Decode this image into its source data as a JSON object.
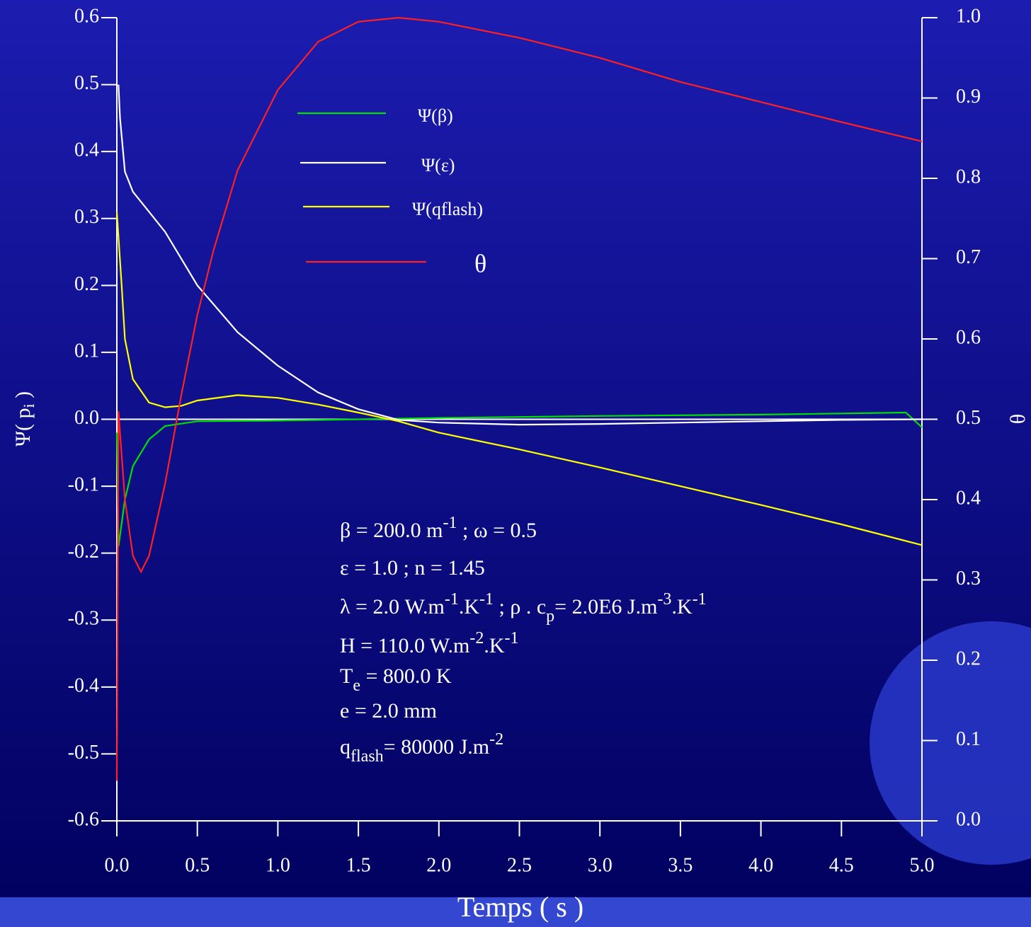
{
  "chart_data": {
    "type": "line",
    "xlabel": "Temps ( s )",
    "ylabel": [
      "Ψ( p",
      "i",
      " )"
    ],
    "y2label": "θ",
    "xlim": [
      0,
      5
    ],
    "xticks": [
      {
        "value": 0,
        "label": "0.0"
      },
      0.5,
      {
        "value": 1,
        "label": "1.0"
      },
      1.5,
      {
        "value": 2,
        "label": "2.0"
      },
      2.5,
      {
        "value": 3,
        "label": "3.0"
      },
      3.5,
      {
        "value": 4,
        "label": "4.0"
      },
      4.5,
      {
        "value": 5,
        "label": "5.0"
      }
    ],
    "ylim": [
      -0.6,
      0.6
    ],
    "yticks": [
      -0.6,
      -0.5,
      -0.4,
      -0.3,
      -0.2,
      -0.1,
      {
        "value": 0,
        "label": "0.0"
      },
      0.1,
      0.2,
      0.3,
      0.4,
      0.5,
      0.6
    ],
    "y2lim": [
      0,
      1
    ],
    "y2ticks": [
      {
        "value": 0,
        "label": "0.0"
      },
      0.1,
      0.2,
      0.3,
      0.4,
      0.5,
      0.6,
      0.7,
      0.8,
      0.9,
      {
        "value": 1,
        "label": "1.0"
      }
    ],
    "series": [
      {
        "name": "Ψ(β)",
        "color": "#00e000",
        "x": [
          0,
          0.01,
          0.05,
          0.1,
          0.2,
          0.3,
          0.5,
          1.0,
          1.5,
          2.0,
          3.0,
          4.0,
          4.9,
          5.0
        ],
        "values": [
          -0.02,
          -0.19,
          -0.12,
          -0.07,
          -0.03,
          -0.01,
          -0.003,
          -0.002,
          0.0,
          0.002,
          0.005,
          0.007,
          0.01,
          -0.012
        ]
      },
      {
        "name": "Ψ(ε)",
        "color": "#ffffff",
        "x": [
          0.01,
          0.02,
          0.05,
          0.1,
          0.2,
          0.3,
          0.5,
          0.75,
          1.0,
          1.25,
          1.5,
          1.75,
          2.0,
          2.5,
          3.0,
          3.5,
          4.0,
          4.5,
          5.0
        ],
        "values": [
          0.5,
          0.45,
          0.37,
          0.34,
          0.31,
          0.28,
          0.2,
          0.13,
          0.08,
          0.04,
          0.015,
          -0.001,
          -0.005,
          -0.008,
          -0.007,
          -0.005,
          -0.003,
          -0.001,
          0.0
        ]
      },
      {
        "name": "Ψ(qflash)",
        "color": "#ffff00",
        "x": [
          0,
          0.03,
          0.05,
          0.1,
          0.2,
          0.3,
          0.4,
          0.5,
          0.75,
          1.0,
          1.25,
          1.5,
          1.75,
          2.0,
          2.5,
          3.0,
          3.5,
          4.0,
          4.5,
          5.0
        ],
        "values": [
          0.31,
          0.2,
          0.12,
          0.06,
          0.025,
          0.018,
          0.02,
          0.028,
          0.036,
          0.032,
          0.022,
          0.01,
          -0.003,
          -0.02,
          -0.045,
          -0.072,
          -0.1,
          -0.128,
          -0.157,
          -0.188
        ]
      },
      {
        "name": "θ",
        "color": "#ff2020",
        "axis": "y2",
        "x": [
          0,
          0.01,
          0.05,
          0.1,
          0.15,
          0.2,
          0.3,
          0.4,
          0.5,
          0.6,
          0.75,
          1.0,
          1.25,
          1.5,
          1.75,
          2.0,
          2.5,
          3.0,
          3.5,
          4.0,
          4.5,
          5.0
        ],
        "values": [
          0.05,
          0.51,
          0.4,
          0.33,
          0.31,
          0.33,
          0.42,
          0.53,
          0.63,
          0.71,
          0.81,
          0.91,
          0.97,
          0.995,
          1.0,
          0.995,
          0.975,
          0.95,
          0.92,
          0.895,
          0.87,
          0.846
        ]
      }
    ],
    "annotations": [
      [
        "β  = 200.0 m",
        "-1",
        " ; ω  = 0.5"
      ],
      [
        "ε  = 1.0  ;  n = 1.45"
      ],
      [
        "λ  =  2.0   W.m",
        "-1",
        ".K",
        "-1",
        " ;  ρ  . c",
        "p",
        "= 2.0E6 J.m",
        "-3",
        ".K",
        "-1"
      ],
      [
        "H = 110.0 W.m",
        "-2",
        ".K",
        "-1"
      ],
      [
        "T",
        "e",
        " = 800.0 K"
      ],
      [
        "e = 2.0 mm"
      ],
      [
        "q",
        "flash",
        "= 80000 J.m",
        "-2"
      ]
    ]
  }
}
